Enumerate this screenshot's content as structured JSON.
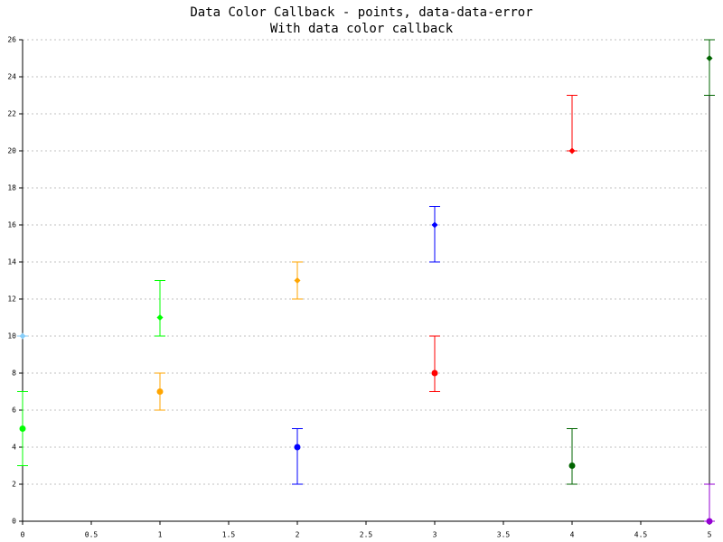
{
  "chart_data": {
    "type": "error-points",
    "title": "Data Color Callback - points, data-data-error",
    "subtitle": "With data color callback",
    "x": [
      0,
      1,
      2,
      3,
      4,
      5
    ],
    "series": [
      {
        "marker": "circle",
        "values": [
          5,
          7,
          4,
          8,
          3,
          0
        ],
        "err_plus": [
          2,
          1,
          1,
          2,
          2,
          2
        ],
        "err_minus": [
          2,
          1,
          2,
          1,
          1,
          0
        ],
        "colors": [
          "#00ff00",
          "#ffa500",
          "#0000ff",
          "#ff0000",
          "#006400",
          "#9400d3"
        ]
      },
      {
        "marker": "diamond",
        "values": [
          10,
          11,
          13,
          16,
          20,
          25
        ],
        "err_plus": [
          0,
          2,
          1,
          1,
          3,
          2
        ],
        "err_minus": [
          0,
          1,
          1,
          2,
          0,
          2
        ],
        "colors": [
          "#87cefa",
          "#00ff00",
          "#ffa500",
          "#0000ff",
          "#ff0000",
          "#006400"
        ]
      }
    ],
    "xlim": [
      0,
      5
    ],
    "ylim": [
      0,
      26
    ],
    "xticks": [
      0,
      0.5,
      1,
      1.5,
      2,
      2.5,
      3,
      3.5,
      4,
      4.5,
      5
    ],
    "yticks": [
      0,
      2,
      4,
      6,
      8,
      10,
      12,
      14,
      16,
      18,
      20,
      22,
      24,
      26
    ],
    "grid": true
  }
}
